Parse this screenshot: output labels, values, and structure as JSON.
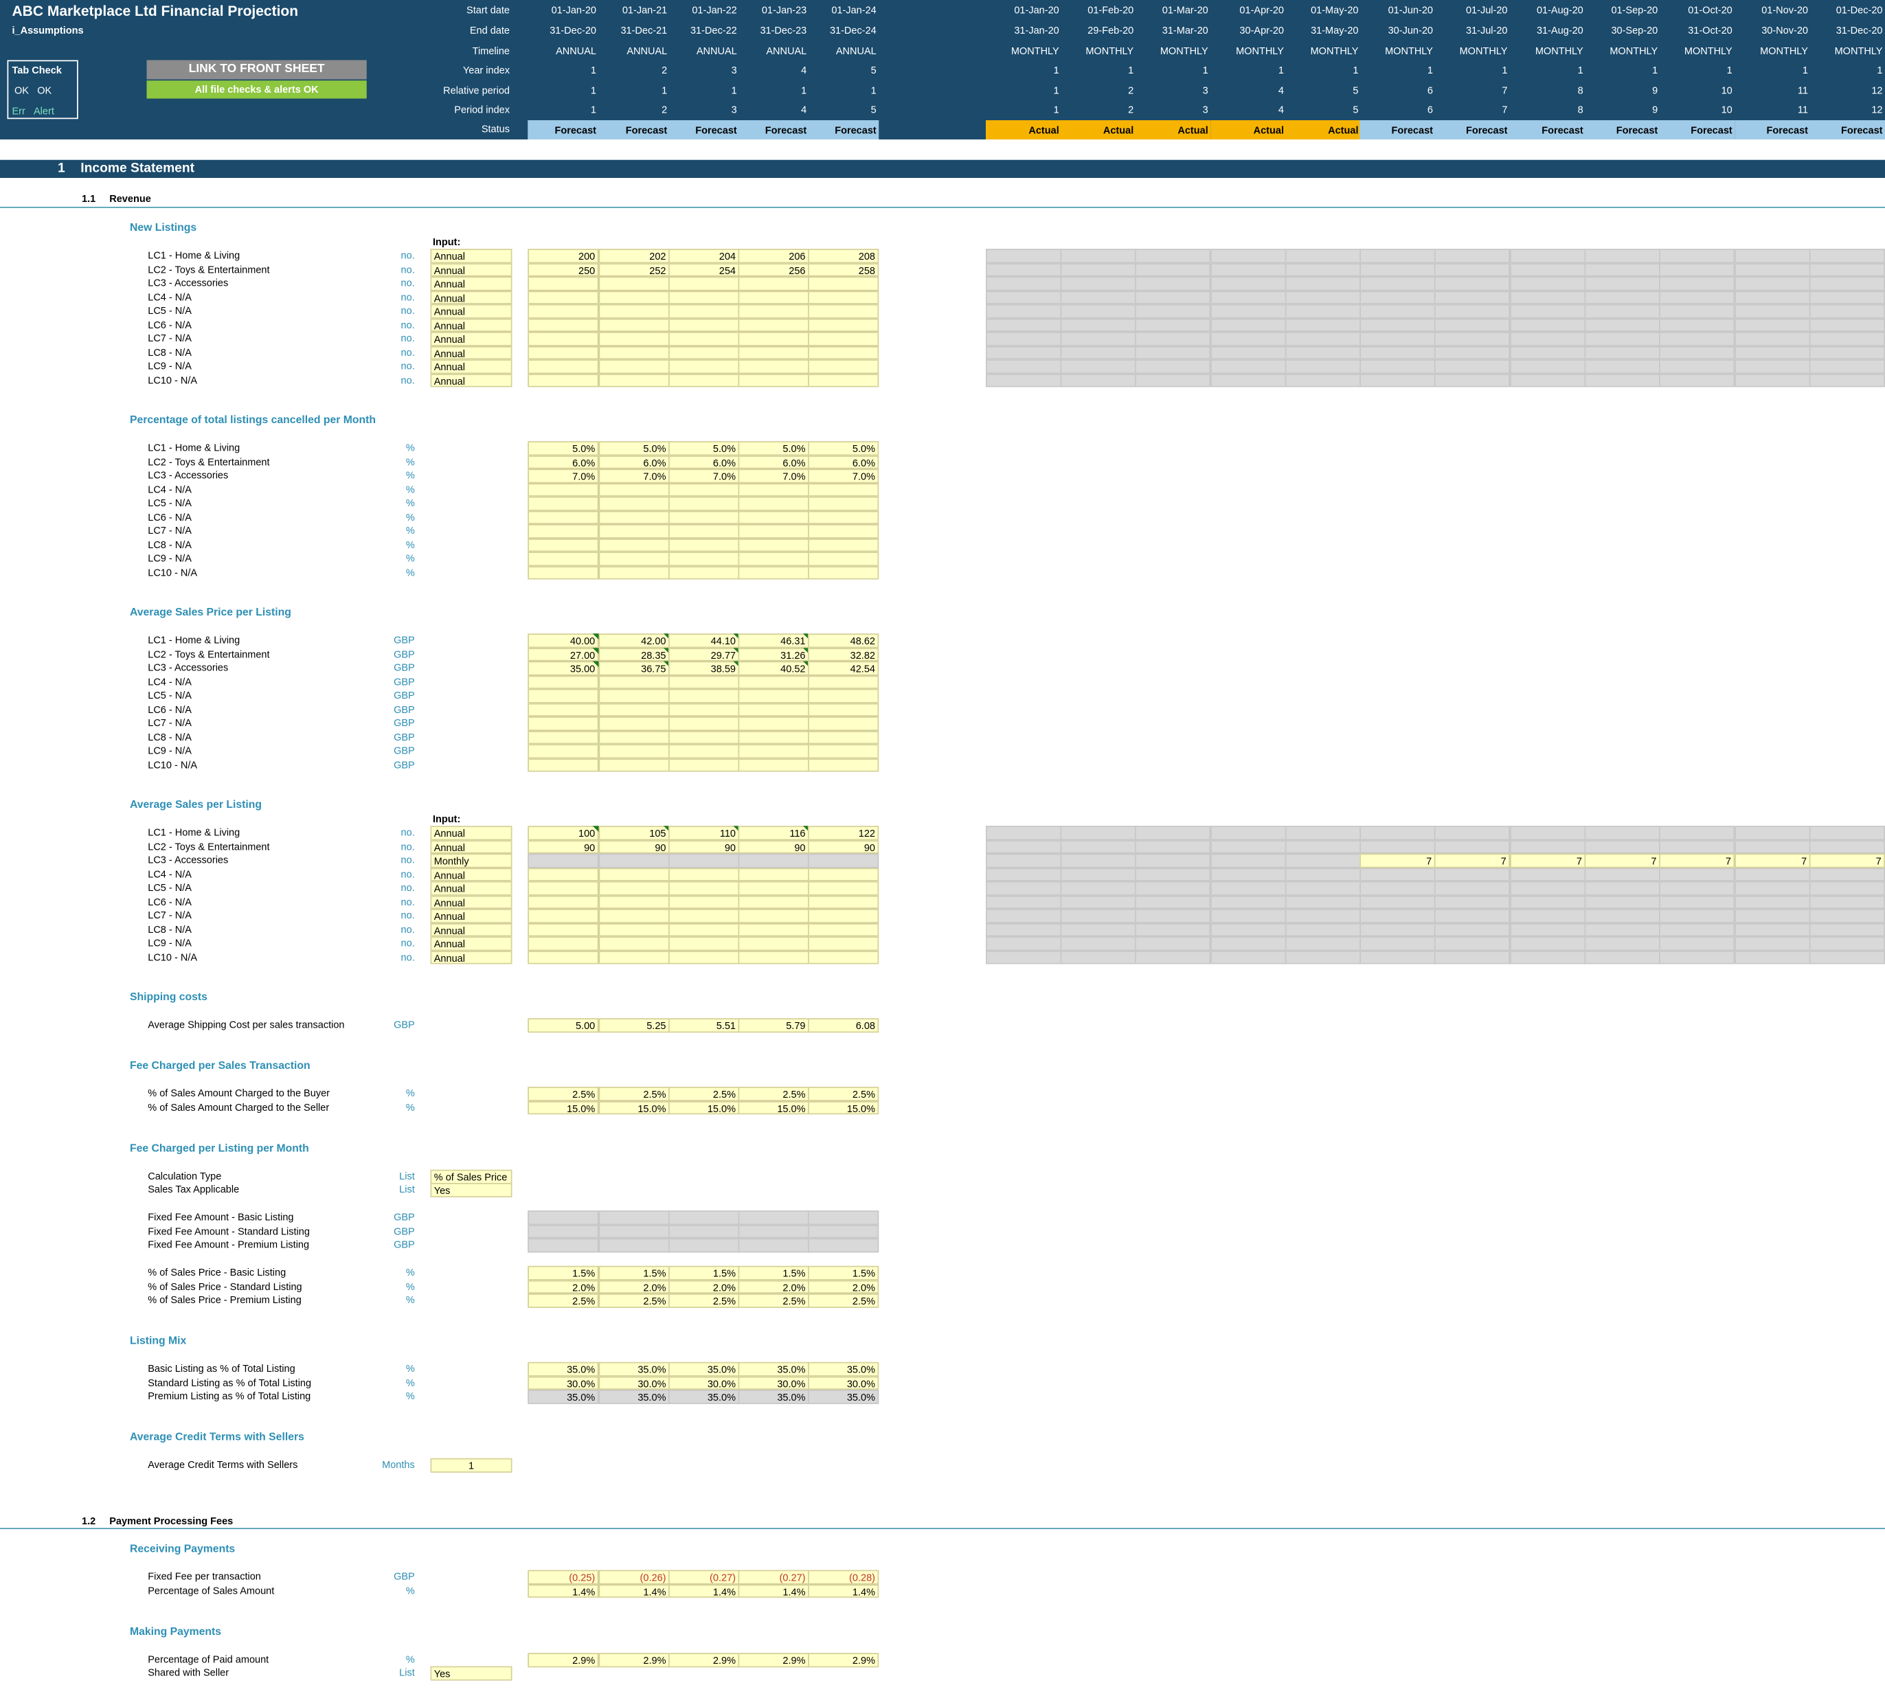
{
  "header": {
    "title": "ABC Marketplace Ltd Financial Projection",
    "sheet": "i_Assumptions",
    "tab_check": {
      "title": "Tab Check",
      "ok1": "OK",
      "ok2": "OK",
      "err": "Err",
      "alert": "Alert"
    },
    "link_button": "LINK TO FRONT SHEET",
    "checks_status": "All file checks & alerts OK",
    "row_labels": [
      "Start date",
      "End date",
      "Timeline",
      "Year index",
      "Relative period",
      "Period index",
      "Status"
    ],
    "annual": {
      "start": [
        "01-Jan-20",
        "01-Jan-21",
        "01-Jan-22",
        "01-Jan-23",
        "01-Jan-24"
      ],
      "end": [
        "31-Dec-20",
        "31-Dec-21",
        "31-Dec-22",
        "31-Dec-23",
        "31-Dec-24"
      ],
      "timeline": [
        "ANNUAL",
        "ANNUAL",
        "ANNUAL",
        "ANNUAL",
        "ANNUAL"
      ],
      "year_index": [
        "1",
        "2",
        "3",
        "4",
        "5"
      ],
      "relative": [
        "1",
        "1",
        "1",
        "1",
        "1"
      ],
      "period": [
        "1",
        "2",
        "3",
        "4",
        "5"
      ],
      "status": [
        "Forecast",
        "Forecast",
        "Forecast",
        "Forecast",
        "Forecast"
      ]
    },
    "monthly": {
      "start": [
        "01-Jan-20",
        "01-Feb-20",
        "01-Mar-20",
        "01-Apr-20",
        "01-May-20",
        "01-Jun-20",
        "01-Jul-20",
        "01-Aug-20",
        "01-Sep-20",
        "01-Oct-20",
        "01-Nov-20",
        "01-Dec-20"
      ],
      "end": [
        "31-Jan-20",
        "29-Feb-20",
        "31-Mar-20",
        "30-Apr-20",
        "31-May-20",
        "30-Jun-20",
        "31-Jul-20",
        "31-Aug-20",
        "30-Sep-20",
        "31-Oct-20",
        "30-Nov-20",
        "31-Dec-20"
      ],
      "timeline": [
        "MONTHLY",
        "MONTHLY",
        "MONTHLY",
        "MONTHLY",
        "MONTHLY",
        "MONTHLY",
        "MONTHLY",
        "MONTHLY",
        "MONTHLY",
        "MONTHLY",
        "MONTHLY",
        "MONTHLY"
      ],
      "year_index": [
        "1",
        "1",
        "1",
        "1",
        "1",
        "1",
        "1",
        "1",
        "1",
        "1",
        "1",
        "1"
      ],
      "relative": [
        "1",
        "2",
        "3",
        "4",
        "5",
        "6",
        "7",
        "8",
        "9",
        "10",
        "11",
        "12"
      ],
      "period": [
        "1",
        "2",
        "3",
        "4",
        "5",
        "6",
        "7",
        "8",
        "9",
        "10",
        "11",
        "12"
      ],
      "status": [
        "Actual",
        "Actual",
        "Actual",
        "Actual",
        "Actual",
        "Forecast",
        "Forecast",
        "Forecast",
        "Forecast",
        "Forecast",
        "Forecast",
        "Forecast"
      ]
    }
  },
  "section1": {
    "number": "1",
    "title": "Income Statement"
  },
  "sub11": {
    "number": "1.1",
    "title": "Revenue"
  },
  "sub12": {
    "number": "1.2",
    "title": "Payment Processing Fees"
  },
  "input_label": "Input:",
  "lc_names": [
    "LC1 - Home & Living",
    "LC2 - Toys & Entertainment",
    "LC3 - Accessories",
    "LC4 - N/A",
    "LC5 - N/A",
    "LC6 - N/A",
    "LC7 - N/A",
    "LC8 - N/A",
    "LC9 - N/A",
    "LC10 - N/A"
  ],
  "new_listings": {
    "title": "New Listings",
    "unit": "no.",
    "inputs": [
      "Annual",
      "Annual",
      "Annual",
      "Annual",
      "Annual",
      "Annual",
      "Annual",
      "Annual",
      "Annual",
      "Annual"
    ],
    "values": [
      [
        "200",
        "202",
        "204",
        "206",
        "208"
      ],
      [
        "250",
        "252",
        "254",
        "256",
        "258"
      ]
    ]
  },
  "cancelled": {
    "title": "Percentage of total listings cancelled per Month",
    "unit": "%",
    "values": [
      [
        "5.0%",
        "5.0%",
        "5.0%",
        "5.0%",
        "5.0%"
      ],
      [
        "6.0%",
        "6.0%",
        "6.0%",
        "6.0%",
        "6.0%"
      ],
      [
        "7.0%",
        "7.0%",
        "7.0%",
        "7.0%",
        "7.0%"
      ]
    ]
  },
  "price": {
    "title": "Average Sales Price per Listing",
    "unit": "GBP",
    "values": [
      [
        "40.00",
        "42.00",
        "44.10",
        "46.31",
        "48.62"
      ],
      [
        "27.00",
        "28.35",
        "29.77",
        "31.26",
        "32.82"
      ],
      [
        "35.00",
        "36.75",
        "38.59",
        "40.52",
        "42.54"
      ]
    ]
  },
  "sales": {
    "title": "Average Sales per Listing",
    "unit": "no.",
    "inputs": [
      "Annual",
      "Annual",
      "Monthly",
      "Annual",
      "Annual",
      "Annual",
      "Annual",
      "Annual",
      "Annual",
      "Annual"
    ],
    "values": [
      [
        "100",
        "105",
        "110",
        "116",
        "122"
      ],
      [
        "90",
        "90",
        "90",
        "90",
        "90"
      ]
    ],
    "lc3_monthly": [
      "7",
      "7",
      "7",
      "7",
      "7",
      "7",
      "7"
    ]
  },
  "shipping": {
    "title": "Shipping costs",
    "label": "Average Shipping Cost per sales transaction",
    "unit": "GBP",
    "values": [
      "5.00",
      "5.25",
      "5.51",
      "5.79",
      "6.08"
    ]
  },
  "fee_tx": {
    "title": "Fee Charged per Sales Transaction",
    "rows": [
      {
        "label": "% of Sales Amount Charged to the Buyer",
        "unit": "%",
        "values": [
          "2.5%",
          "2.5%",
          "2.5%",
          "2.5%",
          "2.5%"
        ]
      },
      {
        "label": "% of Sales Amount Charged to the Seller",
        "unit": "%",
        "values": [
          "15.0%",
          "15.0%",
          "15.0%",
          "15.0%",
          "15.0%"
        ]
      }
    ]
  },
  "fee_listing": {
    "title": "Fee Charged per Listing per Month",
    "calc_label": "Calculation Type",
    "calc_unit": "List",
    "calc_value": "% of Sales Price",
    "tax_label": "Sales Tax Applicable",
    "tax_unit": "List",
    "tax_value": "Yes",
    "fixed": [
      {
        "label": "Fixed Fee Amount - Basic Listing",
        "unit": "GBP"
      },
      {
        "label": "Fixed Fee Amount - Standard Listing",
        "unit": "GBP"
      },
      {
        "label": "Fixed Fee Amount - Premium Listing",
        "unit": "GBP"
      }
    ],
    "pct": [
      {
        "label": "% of Sales Price - Basic Listing",
        "unit": "%",
        "values": [
          "1.5%",
          "1.5%",
          "1.5%",
          "1.5%",
          "1.5%"
        ]
      },
      {
        "label": "% of Sales Price - Standard Listing",
        "unit": "%",
        "values": [
          "2.0%",
          "2.0%",
          "2.0%",
          "2.0%",
          "2.0%"
        ]
      },
      {
        "label": "% of Sales Price - Premium Listing",
        "unit": "%",
        "values": [
          "2.5%",
          "2.5%",
          "2.5%",
          "2.5%",
          "2.5%"
        ]
      }
    ]
  },
  "mix": {
    "title": "Listing Mix",
    "rows": [
      {
        "label": "Basic Listing as % of Total Listing",
        "unit": "%",
        "values": [
          "35.0%",
          "35.0%",
          "35.0%",
          "35.0%",
          "35.0%"
        ]
      },
      {
        "label": "Standard Listing as % of Total Listing",
        "unit": "%",
        "values": [
          "30.0%",
          "30.0%",
          "30.0%",
          "30.0%",
          "30.0%"
        ]
      },
      {
        "label": "Premium Listing as % of Total Listing",
        "unit": "%",
        "values": [
          "35.0%",
          "35.0%",
          "35.0%",
          "35.0%",
          "35.0%"
        ]
      }
    ]
  },
  "credit": {
    "title": "Average Credit Terms with Sellers",
    "label": "Average Credit Terms with Sellers",
    "unit": "Months",
    "value": "1"
  },
  "receiving": {
    "title": "Receiving Payments",
    "rows": [
      {
        "label": "Fixed Fee per transaction",
        "unit": "GBP",
        "values": [
          "(0.25)",
          "(0.26)",
          "(0.27)",
          "(0.27)",
          "(0.28)"
        ]
      },
      {
        "label": "Percentage of Sales Amount",
        "unit": "%",
        "values": [
          "1.4%",
          "1.4%",
          "1.4%",
          "1.4%",
          "1.4%"
        ]
      }
    ]
  },
  "making": {
    "title": "Making Payments",
    "pct_label": "Percentage of Paid amount",
    "pct_unit": "%",
    "pct_values": [
      "2.9%",
      "2.9%",
      "2.9%",
      "2.9%",
      "2.9%"
    ],
    "shared_label": "Shared with Seller",
    "shared_unit": "List",
    "shared_value": "Yes"
  },
  "colors": {
    "header": "#1b4a6b",
    "input": "#ffffc8",
    "accent": "#2e8fb5",
    "actual": "#f6b400",
    "forecast": "#9fcbe8",
    "ok_green": "#8dc63f"
  }
}
